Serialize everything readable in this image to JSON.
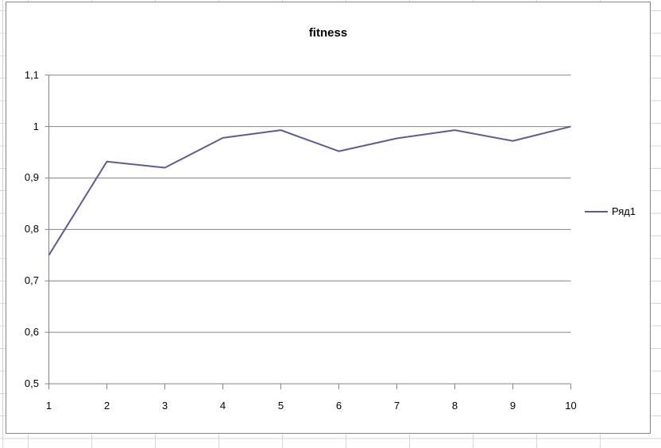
{
  "chart_data": {
    "type": "line",
    "title": "fitness",
    "categories": [
      "1",
      "2",
      "3",
      "4",
      "5",
      "6",
      "7",
      "8",
      "9",
      "10"
    ],
    "series": [
      {
        "name": "Ряд1",
        "values": [
          0.75,
          0.932,
          0.92,
          0.978,
          0.993,
          0.952,
          0.977,
          0.993,
          0.972,
          1.0
        ]
      }
    ],
    "xlabel": "",
    "ylabel": "",
    "ylim": [
      0.5,
      1.1
    ],
    "y_ticks": [
      {
        "value": 0.5,
        "label": "0,5"
      },
      {
        "value": 0.6,
        "label": "0,6"
      },
      {
        "value": 0.7,
        "label": "0,7"
      },
      {
        "value": 0.8,
        "label": "0,8"
      },
      {
        "value": 0.9,
        "label": "0,9"
      },
      {
        "value": 1.0,
        "label": "1"
      },
      {
        "value": 1.1,
        "label": "1,1"
      }
    ],
    "grid": "horizontal-only",
    "legend_position": "right",
    "decimal_separator": ",",
    "colors": {
      "series_line": "#5c5c94",
      "gridline": "#848484",
      "axis": "#848484",
      "chart_border": "#848484",
      "chart_background": "#ffffff",
      "cell_gridline": "#d4d4d4",
      "text": "#000000"
    }
  }
}
